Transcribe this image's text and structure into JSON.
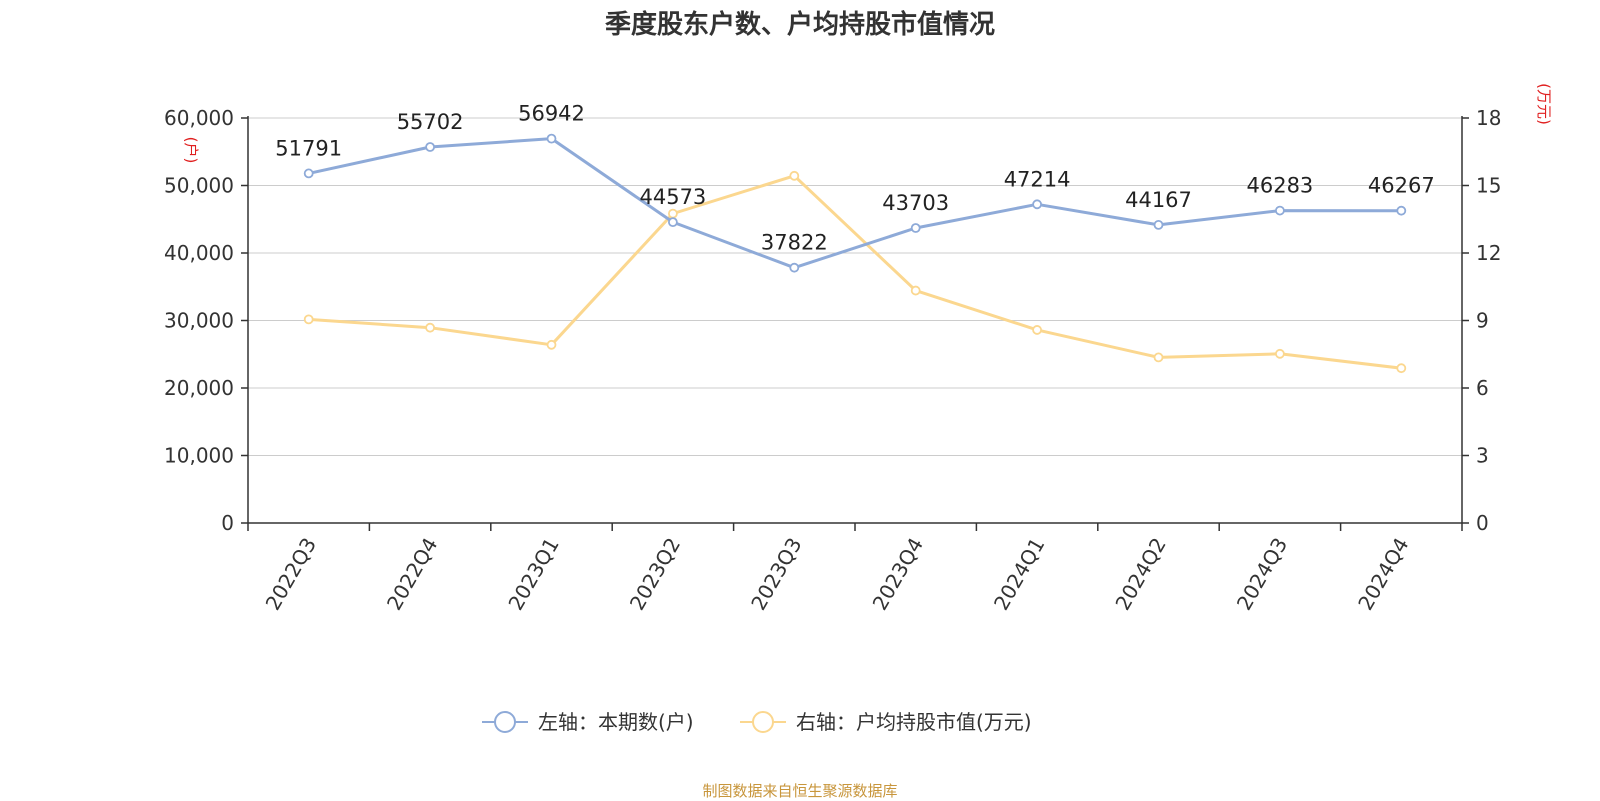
{
  "title": "季度股东户数、户均持股市值情况",
  "footer": "制图数据来自恒生聚源数据库",
  "chart_data": {
    "type": "line",
    "categories": [
      "2022Q3",
      "2022Q4",
      "2023Q1",
      "2023Q2",
      "2023Q3",
      "2023Q4",
      "2024Q1",
      "2024Q2",
      "2024Q3",
      "2024Q4"
    ],
    "left_axis": {
      "unit": "(户)",
      "ylim": [
        0,
        60000
      ],
      "ticks": [
        0,
        10000,
        20000,
        30000,
        40000,
        50000,
        60000
      ],
      "tick_labels": [
        "0",
        "10,000",
        "20,000",
        "30,000",
        "40,000",
        "50,000",
        "60,000"
      ]
    },
    "right_axis": {
      "unit": "(万元)",
      "ylim": [
        0,
        18
      ],
      "ticks": [
        0,
        3,
        6,
        9,
        12,
        15,
        18
      ],
      "tick_labels": [
        "0",
        "3",
        "6",
        "9",
        "12",
        "15",
        "18"
      ]
    },
    "series": [
      {
        "name": "左轴：本期数(户)",
        "axis": "left",
        "color": "#8eaad8",
        "values": [
          51791,
          55702,
          56942,
          44573,
          37822,
          43703,
          47214,
          44167,
          46283,
          46267
        ],
        "labels": [
          "51791",
          "55702",
          "56942",
          "44573",
          "37822",
          "43703",
          "47214",
          "44167",
          "46283",
          "46267"
        ]
      },
      {
        "name": "右轴：户均持股市值(万元)",
        "axis": "right",
        "color": "#fbd78f",
        "values": [
          9.05,
          8.68,
          7.92,
          13.75,
          15.43,
          10.33,
          8.58,
          7.36,
          7.52,
          6.88
        ]
      }
    ],
    "grid": true,
    "legend": "bottom-center",
    "unit_color": "#e02020"
  }
}
